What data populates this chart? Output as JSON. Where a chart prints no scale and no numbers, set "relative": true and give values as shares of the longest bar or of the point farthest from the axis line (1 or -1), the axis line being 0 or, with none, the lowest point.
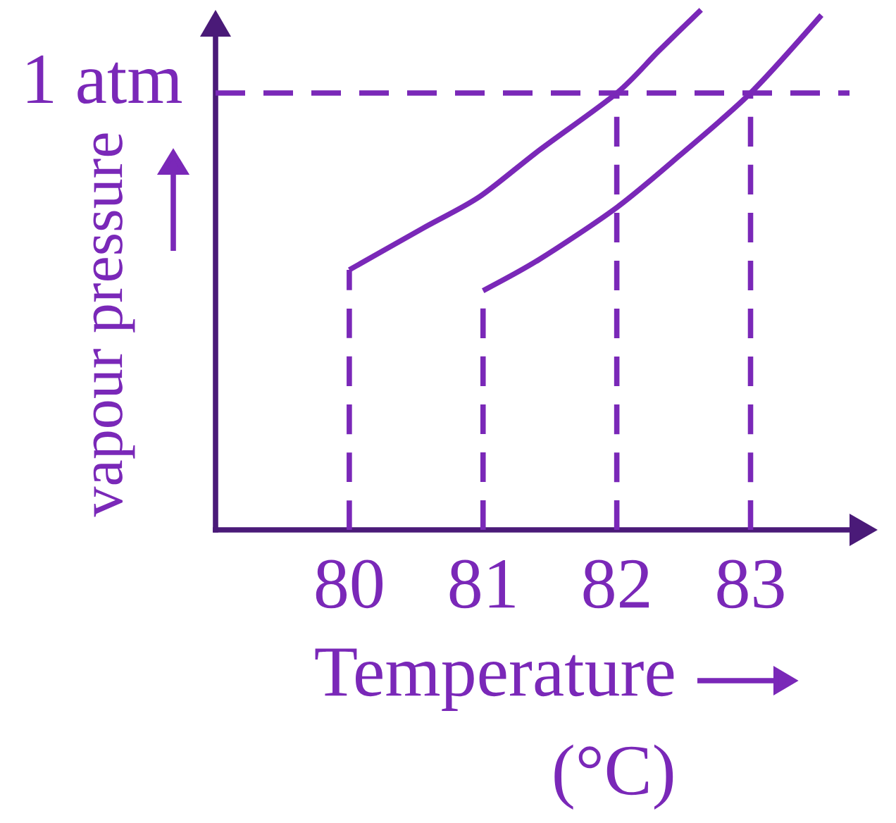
{
  "chart_data": {
    "type": "line",
    "relative": true,
    "xlabel": "Temperature (°C)",
    "ylabel": "vapour pressure",
    "xlim": [
      79,
      83.74
    ],
    "xticks": [
      80,
      81,
      82,
      83
    ],
    "series": [
      {
        "color": "#7a28b8",
        "x": [
          80,
          80.55,
          80.97,
          81.42,
          82,
          82.31,
          82.63
        ],
        "values": [
          0.5,
          0.58,
          0.64,
          0.73,
          0.84,
          0.92,
          1
        ]
      },
      {
        "color": "#7a28b8",
        "x": [
          81,
          81.42,
          82,
          82.47,
          83,
          83.53
        ],
        "values": [
          0.46,
          0.52,
          0.62,
          0.72,
          0.84,
          0.99
        ]
      },
      {
        "color": "#7a28b8",
        "line_style": "dashed",
        "x": [
          80,
          80
        ],
        "values": [
          0,
          0.5
        ]
      },
      {
        "color": "#7a28b8",
        "line_style": "dashed",
        "x": [
          81,
          81
        ],
        "values": [
          0,
          0.46
        ]
      },
      {
        "color": "#7a28b8",
        "line_style": "dashed",
        "x": [
          82,
          82
        ],
        "values": [
          0,
          0.84
        ]
      },
      {
        "color": "#7a28b8",
        "line_style": "dashed",
        "x": [
          83,
          83
        ],
        "values": [
          0,
          0.84
        ]
      }
    ],
    "ref_lines": [
      {
        "axis": "y",
        "value": 0.84,
        "label": "1 atm",
        "color": "#7a28b8",
        "line_style": "dashed"
      }
    ]
  }
}
